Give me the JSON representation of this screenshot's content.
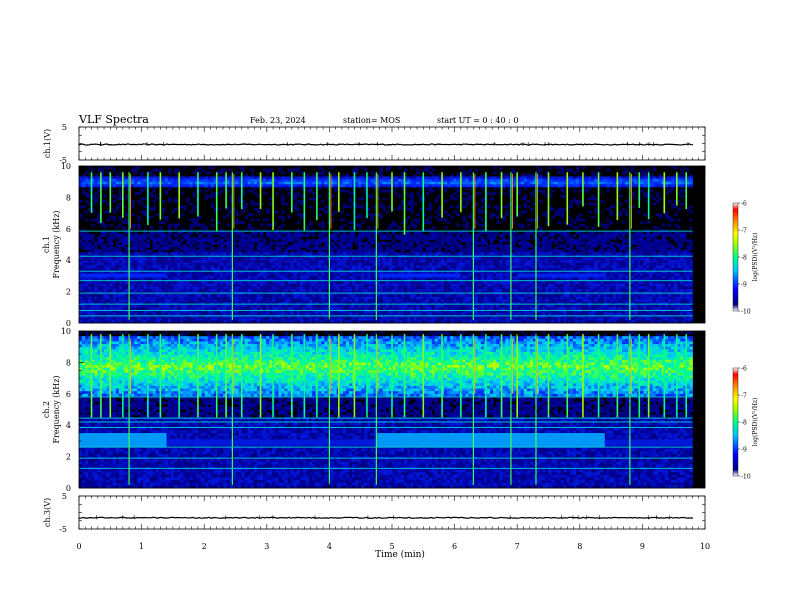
{
  "header": {
    "title": "VLF Spectra",
    "date": "Feb. 23, 2024",
    "station": "station= MOS",
    "start_ut": "start  UT =   0 : 40 : 0"
  },
  "chart_data": [
    {
      "type": "line",
      "panel": "ch1-waveform",
      "ylabel": "ch.1(V)",
      "ylim": [
        -5,
        5
      ],
      "y_ticks": [
        "5",
        "-5"
      ],
      "x_range_min": [
        0,
        10
      ],
      "series": [
        {
          "values": [
            -0.3,
            -0.3,
            -0.3,
            -0.3
          ]
        }
      ]
    },
    {
      "type": "heatmap",
      "panel": "ch1-spectrogram",
      "ylabel": "ch.1\nFrequency (kHz)",
      "ylabel_lines": [
        "ch.1",
        "Frequency (kHz)"
      ],
      "ylim": [
        0,
        10
      ],
      "y_ticks": [
        "0",
        "2",
        "4",
        "6",
        "8",
        "10"
      ],
      "x_range_min": [
        0,
        10
      ],
      "data_end_min": 9.8,
      "colorbar": {
        "label": "log(PSD)(V²/Hz)",
        "range": [
          -10,
          -6
        ],
        "ticks": [
          "-6",
          "-7",
          "-8",
          "-9",
          "-10"
        ]
      },
      "lines_khz": [
        0.45,
        0.8,
        1.2,
        1.9,
        2.7,
        3.3,
        4.25,
        5.85
      ],
      "band_segments": [
        {
          "x0": 0.0,
          "x1": 1.4,
          "f0": 2.9,
          "f1": 3.15,
          "level": 0.3
        },
        {
          "x0": 4.8,
          "x1": 6.1,
          "f0": 2.9,
          "f1": 3.15,
          "level": 0.3
        },
        {
          "x0": 7.0,
          "x1": 8.4,
          "f0": 2.9,
          "f1": 3.15,
          "level": 0.28
        }
      ],
      "emission_band_khz": [
        8.6,
        9.3
      ],
      "spike_times_min": [
        0.2,
        0.35,
        0.5,
        0.7,
        0.8,
        1.1,
        1.3,
        1.6,
        1.9,
        2.2,
        2.35,
        2.45,
        2.6,
        2.9,
        3.1,
        3.4,
        3.6,
        3.8,
        4.0,
        4.15,
        4.4,
        4.6,
        4.75,
        5.0,
        5.2,
        5.5,
        5.8,
        6.1,
        6.3,
        6.5,
        6.75,
        6.9,
        7.0,
        7.3,
        7.5,
        7.8,
        8.05,
        8.3,
        8.6,
        8.8,
        8.95,
        9.1,
        9.35,
        9.55,
        9.7
      ],
      "strong_spikes_min": [
        0.8,
        2.45,
        4.0,
        4.75,
        6.3,
        6.9,
        7.3,
        8.8
      ]
    },
    {
      "type": "heatmap",
      "panel": "ch2-spectrogram",
      "ylabel": "ch.2\nFrequency (kHz)",
      "ylabel_lines": [
        "ch.2",
        "Frequency (kHz)"
      ],
      "ylim": [
        0,
        10
      ],
      "y_ticks": [
        "0",
        "2",
        "4",
        "6",
        "8",
        "10"
      ],
      "x_range_min": [
        0,
        10
      ],
      "data_end_min": 9.8,
      "colorbar": {
        "label": "log(PSD)(V²/Hz)",
        "range": [
          -10,
          -6
        ],
        "ticks": [
          "-6",
          "-7",
          "-8",
          "-9",
          "-10"
        ]
      },
      "lines_khz": [
        1.25,
        1.9,
        2.6,
        3.85,
        4.2,
        4.45,
        5.8
      ],
      "band_segments": [
        {
          "x0": 0.0,
          "x1": 1.4,
          "f0": 2.6,
          "f1": 3.5,
          "level": 0.42
        },
        {
          "x0": 1.4,
          "x1": 4.75,
          "f0": 2.7,
          "f1": 3.1,
          "level": 0.25
        },
        {
          "x0": 4.75,
          "x1": 8.4,
          "f0": 2.6,
          "f1": 3.5,
          "level": 0.42
        },
        {
          "x0": 8.4,
          "x1": 9.8,
          "f0": 2.7,
          "f1": 3.1,
          "level": 0.25
        }
      ],
      "emission_band_khz": [
        5.8,
        9.6
      ],
      "spike_times_min": [
        0.2,
        0.35,
        0.5,
        0.7,
        0.8,
        1.1,
        1.3,
        1.6,
        1.9,
        2.2,
        2.35,
        2.45,
        2.6,
        2.9,
        3.1,
        3.4,
        3.6,
        3.8,
        4.0,
        4.15,
        4.4,
        4.6,
        4.75,
        5.0,
        5.2,
        5.5,
        5.8,
        6.1,
        6.3,
        6.5,
        6.75,
        6.9,
        7.0,
        7.3,
        7.5,
        7.8,
        8.05,
        8.3,
        8.6,
        8.8,
        8.95,
        9.1,
        9.35,
        9.55,
        9.7
      ],
      "strong_spikes_min": [
        0.8,
        2.45,
        4.0,
        4.75,
        6.3,
        6.9,
        7.3,
        8.8
      ]
    },
    {
      "type": "line",
      "panel": "ch3-waveform",
      "ylabel": "ch.3(V)",
      "ylim": [
        -5,
        5
      ],
      "y_ticks": [
        "5",
        "-5"
      ],
      "x_range_min": [
        0,
        10
      ],
      "series": [
        {
          "values": [
            -1.6,
            -1.6,
            -1.6,
            -1.6
          ]
        }
      ]
    }
  ],
  "x_axis": {
    "label": "Time (min)",
    "ticks": [
      "0",
      "1",
      "2",
      "3",
      "4",
      "5",
      "6",
      "7",
      "8",
      "9",
      "10"
    ]
  },
  "colors": {
    "background": "#000000",
    "colormap": [
      "#00007f",
      "#0000ff",
      "#00c8ff",
      "#00ff88",
      "#a0ff00",
      "#ffff00",
      "#ff8000",
      "#ff0000",
      "#ffffff"
    ]
  }
}
